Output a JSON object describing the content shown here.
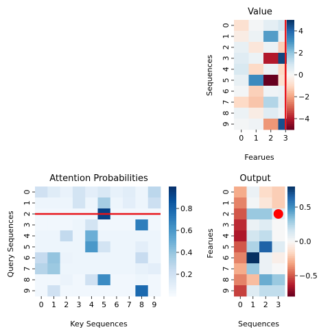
{
  "chart_data": [
    {
      "type": "heatmap",
      "title": "Value",
      "xlabel": "Fearues",
      "ylabel": "Sequences",
      "x_ticks": [
        "0",
        "1",
        "2",
        "3"
      ],
      "y_ticks": [
        "0",
        "1",
        "2",
        "3",
        "4",
        "5",
        "6",
        "7",
        "8",
        "9"
      ],
      "colormap": "RdBu",
      "vlim": [
        -5,
        5
      ],
      "colorbar_ticks": [
        "4",
        "2",
        "0",
        "−2",
        "−4"
      ],
      "colorbar_values": [
        4,
        2,
        0,
        -2,
        -4
      ],
      "highlight": {
        "type": "vertical-line",
        "at_column": 3,
        "color": "#e8141a"
      },
      "values": [
        [
          -0.8,
          0.1,
          0.5,
          0.9
        ],
        [
          -0.4,
          0.3,
          2.8,
          0.4
        ],
        [
          0.4,
          -0.6,
          0.3,
          -1.2
        ],
        [
          0.6,
          0.3,
          -4.0,
          4.6
        ],
        [
          0.8,
          -1.0,
          0.3,
          -1.0
        ],
        [
          0.4,
          3.2,
          -5.0,
          -0.8
        ],
        [
          0.1,
          -1.2,
          0.2,
          0.3
        ],
        [
          -1.0,
          -1.4,
          1.5,
          0.4
        ],
        [
          0.3,
          -0.4,
          0.6,
          0.2
        ],
        [
          0.1,
          0.2,
          -2.2,
          4.4
        ]
      ]
    },
    {
      "type": "heatmap",
      "title": "Attention Probabilities",
      "xlabel": "Key Sequences",
      "ylabel": "Query Sequences",
      "x_ticks": [
        "0",
        "1",
        "2",
        "3",
        "4",
        "5",
        "6",
        "7",
        "8",
        "9"
      ],
      "y_ticks": [
        "0",
        "1",
        "2",
        "3",
        "4",
        "5",
        "6",
        "7",
        "8",
        "9"
      ],
      "colormap": "Blues",
      "vlim": [
        0.0,
        1.0
      ],
      "colorbar_ticks": [
        "0.8",
        "0.6",
        "0.4",
        "0.2"
      ],
      "colorbar_values": [
        0.8,
        0.6,
        0.4,
        0.2
      ],
      "highlight": {
        "type": "horizontal-line",
        "at_row": 2,
        "color": "#e8141a"
      },
      "values": [
        [
          0.2,
          0.12,
          0.07,
          0.18,
          0.1,
          0.15,
          0.08,
          0.11,
          0.05,
          0.28
        ],
        [
          0.05,
          0.05,
          0.05,
          0.18,
          0.05,
          0.35,
          0.05,
          0.1,
          0.05,
          0.22
        ],
        [
          0.03,
          0.03,
          0.03,
          0.03,
          0.03,
          0.93,
          0.03,
          0.03,
          0.03,
          0.03
        ],
        [
          0.03,
          0.03,
          0.03,
          0.05,
          0.18,
          0.03,
          0.03,
          0.03,
          0.7,
          0.03
        ],
        [
          0.05,
          0.05,
          0.26,
          0.05,
          0.5,
          0.05,
          0.05,
          0.05,
          0.05,
          0.05
        ],
        [
          0.05,
          0.05,
          0.05,
          0.05,
          0.6,
          0.18,
          0.05,
          0.05,
          0.1,
          0.05
        ],
        [
          0.25,
          0.4,
          0.06,
          0.05,
          0.05,
          0.05,
          0.05,
          0.05,
          0.24,
          0.05
        ],
        [
          0.3,
          0.38,
          0.05,
          0.05,
          0.05,
          0.05,
          0.05,
          0.05,
          0.08,
          0.1
        ],
        [
          0.03,
          0.03,
          0.06,
          0.03,
          0.2,
          0.65,
          0.03,
          0.03,
          0.05,
          0.03
        ],
        [
          0.03,
          0.2,
          0.03,
          0.03,
          0.03,
          0.03,
          0.03,
          0.03,
          0.78,
          0.03
        ]
      ]
    },
    {
      "type": "heatmap",
      "title": "Output",
      "xlabel": "Sequences",
      "ylabel": "Fearues",
      "x_ticks": [
        "0",
        "1",
        "2",
        "3"
      ],
      "y_ticks": [
        "0",
        "1",
        "2",
        "3",
        "4",
        "5",
        "6",
        "7",
        "8",
        "9"
      ],
      "colormap": "RdBu",
      "vlim": [
        -0.8,
        0.8
      ],
      "colorbar_ticks": [
        "0.5",
        "0.0",
        "−0.5"
      ],
      "colorbar_values": [
        0.5,
        0.0,
        -0.5
      ],
      "highlight": {
        "type": "marker",
        "row": 2,
        "column": 3,
        "color": "#ff0000"
      },
      "values": [
        [
          -0.3,
          0.05,
          -0.15,
          -0.2
        ],
        [
          -0.4,
          0.02,
          -0.1,
          -0.2
        ],
        [
          -0.5,
          0.3,
          0.3,
          0.1
        ],
        [
          -0.6,
          0.05,
          0.1,
          0.0
        ],
        [
          -0.65,
          0.15,
          0.2,
          0.0
        ],
        [
          -0.5,
          0.25,
          0.65,
          0.1
        ],
        [
          -0.4,
          0.8,
          0.05,
          -0.05
        ],
        [
          -0.3,
          0.3,
          0.05,
          0.0
        ],
        [
          -0.4,
          -0.25,
          0.4,
          0.3
        ],
        [
          -0.55,
          0.1,
          0.2,
          0.2
        ]
      ]
    }
  ]
}
